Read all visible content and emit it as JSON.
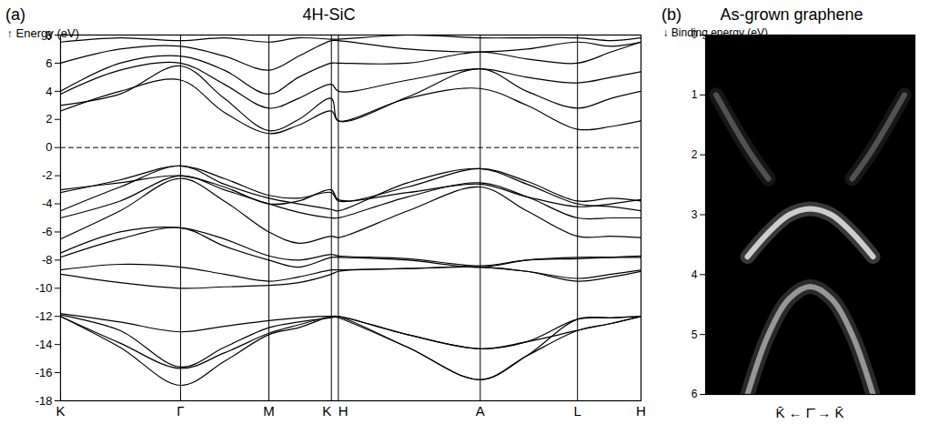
{
  "chart_data": [
    {
      "panel": "(a)",
      "type": "line",
      "title": "4H-SiC",
      "y_label": "Energy (eV)",
      "x": [
        0,
        60,
        121,
        165,
        210,
        240,
        273,
        280,
        350,
        423,
        470,
        521,
        555,
        585
      ],
      "xlim": [
        0,
        585
      ],
      "xticks": [
        {
          "value": 0,
          "label": "K"
        },
        {
          "value": 121,
          "label": "Γ"
        },
        {
          "value": 210,
          "label": "M"
        },
        {
          "value": 273,
          "label": "K"
        },
        {
          "value": 280,
          "label": "H"
        },
        {
          "value": 423,
          "label": "A"
        },
        {
          "value": 521,
          "label": "L"
        },
        {
          "value": 585,
          "label": "H"
        }
      ],
      "ylim": [
        -18,
        8
      ],
      "yticks": [
        -18,
        -16,
        -14,
        -12,
        -10,
        -8,
        -6,
        -4,
        -2,
        0,
        2,
        4,
        6,
        8
      ],
      "grid": "x",
      "series": [
        {
          "color": "#000000",
          "values": [
            -12,
            -14.2,
            -16.9,
            -15.2,
            -13.3,
            -12.8,
            -12.0,
            -12.0,
            -14.2,
            -16.5,
            -14.8,
            -13.0,
            -12.5,
            -12.0
          ]
        },
        {
          "color": "#000000",
          "values": [
            -12,
            -13.9,
            -15.7,
            -14.6,
            -13.2,
            -12.6,
            -12.0,
            -12.0,
            -13.3,
            -14.3,
            -13.8,
            -13.0,
            -12.5,
            -12.0
          ]
        },
        {
          "color": "#000000",
          "values": [
            -11.9,
            -13.0,
            -15.6,
            -14.2,
            -12.8,
            -12.4,
            -12.1,
            -12.0,
            -13.3,
            -14.3,
            -13.8,
            -12.2,
            -12.1,
            -12.0
          ]
        },
        {
          "color": "#000000",
          "values": [
            -11.8,
            -12.4,
            -13.1,
            -12.7,
            -12.3,
            -12.1,
            -12.0,
            -12.1,
            -14.2,
            -16.5,
            -14.8,
            -12.2,
            -12.1,
            -12.0
          ]
        },
        {
          "color": "#000000",
          "values": [
            -9.0,
            -9.6,
            -10.0,
            -9.9,
            -9.8,
            -9.6,
            -9.0,
            -8.8,
            -8.6,
            -8.5,
            -8.8,
            -9.5,
            -9.2,
            -8.8
          ]
        },
        {
          "color": "#000000",
          "values": [
            -8.7,
            -8.3,
            -8.5,
            -9.0,
            -9.5,
            -9.2,
            -8.7,
            -8.7,
            -8.6,
            -8.5,
            -8.8,
            -9.3,
            -9.0,
            -8.7
          ]
        },
        {
          "color": "#000000",
          "values": [
            -7.8,
            -6.5,
            -5.7,
            -7.0,
            -8.0,
            -8.5,
            -7.8,
            -7.8,
            -8.0,
            -8.5,
            -8.0,
            -7.8,
            -7.8,
            -7.8
          ]
        },
        {
          "color": "#000000",
          "values": [
            -7.5,
            -6.0,
            -5.7,
            -6.5,
            -7.7,
            -8.0,
            -7.6,
            -7.7,
            -7.9,
            -8.4,
            -8.0,
            -7.9,
            -7.8,
            -7.7
          ]
        },
        {
          "color": "#000000",
          "values": [
            -6.5,
            -4.5,
            -2.2,
            -3.8,
            -6.0,
            -6.8,
            -6.3,
            -6.4,
            -4.5,
            -2.8,
            -4.5,
            -6.3,
            -6.3,
            -6.4
          ]
        },
        {
          "color": "#000000",
          "values": [
            -5.0,
            -3.8,
            -2.0,
            -3.0,
            -4.0,
            -4.6,
            -5.0,
            -5.0,
            -3.5,
            -2.5,
            -3.5,
            -5.0,
            -5.0,
            -5.0
          ]
        },
        {
          "color": "#000000",
          "values": [
            -4.5,
            -2.8,
            -1.3,
            -2.6,
            -3.6,
            -4.0,
            -4.4,
            -4.5,
            -2.5,
            -1.5,
            -2.6,
            -4.0,
            -4.2,
            -4.5
          ]
        },
        {
          "color": "#000000",
          "values": [
            -3.2,
            -2.3,
            -1.3,
            -2.2,
            -3.4,
            -3.6,
            -3.2,
            -3.8,
            -2.8,
            -1.5,
            -2.4,
            -3.8,
            -3.6,
            -3.8
          ]
        },
        {
          "color": "#000000",
          "values": [
            -3.0,
            -2.5,
            -2.0,
            -2.8,
            -4.0,
            -3.8,
            -3.0,
            -3.7,
            -3.2,
            -2.6,
            -3.5,
            -4.2,
            -4.0,
            -3.7
          ]
        },
        {
          "color": "#000000",
          "values": [
            2.6,
            4.0,
            4.8,
            2.5,
            1.0,
            1.6,
            2.6,
            1.9,
            3.5,
            4.2,
            3.0,
            1.3,
            1.5,
            1.9
          ]
        },
        {
          "color": "#000000",
          "values": [
            3.0,
            3.8,
            5.8,
            3.5,
            1.2,
            2.0,
            3.5,
            1.9,
            3.6,
            5.6,
            4.0,
            2.8,
            3.5,
            4.0
          ]
        },
        {
          "color": "#000000",
          "values": [
            3.8,
            5.5,
            6.0,
            4.5,
            2.8,
            3.5,
            4.5,
            4.0,
            4.8,
            5.6,
            5.0,
            4.6,
            5.0,
            5.4
          ]
        },
        {
          "color": "#000000",
          "values": [
            4.0,
            6.0,
            6.5,
            5.5,
            3.8,
            5.0,
            6.0,
            6.0,
            6.0,
            6.8,
            6.3,
            6.0,
            6.8,
            7.5
          ]
        },
        {
          "color": "#000000",
          "values": [
            6.0,
            7.0,
            7.2,
            6.5,
            5.5,
            6.5,
            7.6,
            7.6,
            7.0,
            6.8,
            7.0,
            7.5,
            7.2,
            7.5
          ]
        },
        {
          "color": "#000000",
          "values": [
            7.5,
            7.8,
            7.6,
            7.8,
            7.5,
            7.8,
            7.7,
            7.7,
            8.0,
            7.8,
            7.8,
            7.8,
            7.6,
            7.8
          ]
        },
        {
          "color": "#000000",
          "line_style": "dashed",
          "values": [
            0,
            0,
            0,
            0,
            0,
            0,
            0,
            0,
            0,
            0,
            0,
            0,
            0,
            0
          ]
        }
      ]
    },
    {
      "panel": "(b)",
      "type": "line",
      "title": "As-grown graphene",
      "x_label": "K̄ ← Γ̄ → K̄",
      "y_label": "Binding energy (eV)",
      "x": [
        -0.9,
        -0.6,
        -0.4,
        -0.2,
        0,
        0.2,
        0.4,
        0.6,
        0.9
      ],
      "xlim": [
        -1,
        1
      ],
      "ylim": [
        6,
        0
      ],
      "yticks": [
        0,
        1,
        2,
        3,
        4,
        5,
        6
      ],
      "tick_labels": "y",
      "series": [
        {
          "color": "#ffffff",
          "values": [
            null,
            3.7,
            3.3,
            3.0,
            2.9,
            3.0,
            3.3,
            3.7,
            null
          ]
        },
        {
          "color": "#bbbbbb",
          "values": [
            null,
            6.0,
            5.0,
            4.4,
            4.2,
            4.4,
            5.0,
            6.0,
            null
          ]
        },
        {
          "color": "#666666",
          "values": [
            1.0,
            1.9,
            2.4,
            null,
            null,
            null,
            2.4,
            1.9,
            1.0
          ]
        }
      ]
    }
  ]
}
